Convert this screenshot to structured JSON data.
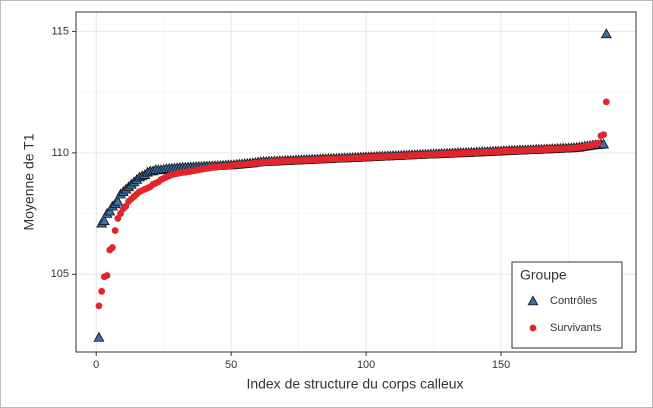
{
  "chart_data": {
    "type": "scatter",
    "x_label": "Index de structure du corps calleux",
    "y_label": "Moyenne de T1",
    "xlim": [
      -7.5,
      200
    ],
    "ylim": [
      101.8,
      115.8
    ],
    "xticks": [
      0,
      50,
      100,
      150
    ],
    "yticks": [
      105,
      110,
      115
    ],
    "x_minor_ticks": [
      25,
      75,
      125,
      175
    ],
    "y_minor_ticks": [
      107.5,
      112.5
    ],
    "grid": true,
    "legend": {
      "title": "Groupe",
      "position": "bottom-right"
    },
    "x": [
      1,
      2,
      3,
      4,
      5,
      6,
      7,
      8,
      9,
      10,
      11,
      12,
      13,
      14,
      15,
      16,
      17,
      18,
      19,
      20,
      21,
      22,
      23,
      24,
      25,
      26,
      27,
      28,
      29,
      30,
      31,
      32,
      33,
      34,
      35,
      36,
      37,
      38,
      39,
      40,
      41,
      42,
      43,
      44,
      45,
      46,
      47,
      48,
      49,
      50,
      51,
      52,
      53,
      54,
      55,
      56,
      57,
      58,
      59,
      60,
      61,
      62,
      63,
      64,
      65,
      66,
      67,
      68,
      69,
      70,
      71,
      72,
      73,
      74,
      75,
      76,
      77,
      78,
      79,
      80,
      81,
      82,
      83,
      84,
      85,
      86,
      87,
      88,
      89,
      90,
      91,
      92,
      93,
      94,
      95,
      96,
      97,
      98,
      99,
      100,
      101,
      102,
      103,
      104,
      105,
      106,
      107,
      108,
      109,
      110,
      111,
      112,
      113,
      114,
      115,
      116,
      117,
      118,
      119,
      120,
      121,
      122,
      123,
      124,
      125,
      126,
      127,
      128,
      129,
      130,
      131,
      132,
      133,
      134,
      135,
      136,
      137,
      138,
      139,
      140,
      141,
      142,
      143,
      144,
      145,
      146,
      147,
      148,
      149,
      150,
      151,
      152,
      153,
      154,
      155,
      156,
      157,
      158,
      159,
      160,
      161,
      162,
      163,
      164,
      165,
      166,
      167,
      168,
      169,
      170,
      171,
      172,
      173,
      174,
      175,
      176,
      177,
      178,
      179,
      180,
      181,
      182,
      183,
      184,
      185,
      186,
      187,
      188,
      189
    ],
    "series": [
      {
        "name": "Contrôles",
        "color": "#3b6fa6",
        "marker": "triangle",
        "values": [
          102.4,
          107.1,
          107.2,
          107.5,
          107.6,
          107.8,
          107.9,
          108.0,
          108.3,
          108.4,
          108.5,
          108.6,
          108.7,
          108.8,
          108.9,
          109.0,
          109.05,
          109.1,
          109.2,
          109.25,
          109.25,
          109.3,
          109.3,
          109.3,
          109.32,
          109.34,
          109.35,
          109.36,
          109.37,
          109.38,
          109.39,
          109.4,
          109.4,
          109.41,
          109.42,
          109.42,
          109.43,
          109.44,
          109.44,
          109.45,
          109.45,
          109.46,
          109.46,
          109.47,
          109.47,
          109.48,
          109.48,
          109.49,
          109.5,
          109.5,
          109.51,
          109.52,
          109.53,
          109.54,
          109.55,
          109.56,
          109.57,
          109.58,
          109.6,
          109.62,
          109.63,
          109.64,
          109.64,
          109.65,
          109.65,
          109.66,
          109.66,
          109.67,
          109.67,
          109.68,
          109.68,
          109.69,
          109.69,
          109.7,
          109.7,
          109.71,
          109.71,
          109.72,
          109.72,
          109.73,
          109.73,
          109.74,
          109.74,
          109.75,
          109.75,
          109.76,
          109.76,
          109.77,
          109.77,
          109.78,
          109.78,
          109.79,
          109.79,
          109.8,
          109.8,
          109.81,
          109.81,
          109.82,
          109.82,
          109.83,
          109.83,
          109.84,
          109.84,
          109.85,
          109.85,
          109.86,
          109.86,
          109.87,
          109.87,
          109.88,
          109.88,
          109.89,
          109.89,
          109.9,
          109.9,
          109.91,
          109.91,
          109.92,
          109.92,
          109.93,
          109.93,
          109.94,
          109.94,
          109.95,
          109.95,
          109.96,
          109.96,
          109.97,
          109.97,
          109.98,
          109.98,
          109.99,
          109.99,
          110.0,
          110.0,
          110.0,
          110.01,
          110.01,
          110.02,
          110.02,
          110.03,
          110.03,
          110.04,
          110.04,
          110.05,
          110.05,
          110.06,
          110.06,
          110.07,
          110.07,
          110.08,
          110.08,
          110.09,
          110.09,
          110.1,
          110.1,
          110.11,
          110.11,
          110.12,
          110.12,
          110.13,
          110.13,
          110.14,
          110.14,
          110.15,
          110.15,
          110.16,
          110.16,
          110.17,
          110.17,
          110.18,
          110.18,
          110.19,
          110.19,
          110.2,
          110.2,
          110.21,
          110.22,
          110.23,
          110.25,
          110.27,
          110.28,
          110.3,
          110.32,
          110.33,
          110.34,
          110.35,
          110.36,
          114.9
        ]
      },
      {
        "name": "Survivants",
        "color": "#e0262b",
        "marker": "circle",
        "values": [
          103.7,
          104.3,
          104.9,
          104.95,
          106.0,
          106.1,
          106.8,
          107.3,
          107.5,
          107.7,
          107.8,
          108.0,
          108.1,
          108.2,
          108.3,
          108.4,
          108.45,
          108.5,
          108.55,
          108.6,
          108.7,
          108.75,
          108.8,
          108.9,
          108.95,
          109.0,
          109.05,
          109.1,
          109.12,
          109.15,
          109.17,
          109.19,
          109.2,
          109.22,
          109.24,
          109.26,
          109.28,
          109.3,
          109.32,
          109.34,
          109.36,
          109.38,
          109.4,
          109.41,
          109.42,
          109.43,
          109.44,
          109.45,
          109.46,
          109.47,
          109.49,
          109.5,
          109.51,
          109.52,
          109.53,
          109.54,
          109.55,
          109.56,
          109.57,
          109.58,
          109.59,
          109.6,
          109.61,
          109.62,
          109.63,
          109.64,
          109.64,
          109.65,
          109.65,
          109.66,
          109.66,
          109.67,
          109.67,
          109.68,
          109.68,
          109.69,
          109.69,
          109.7,
          109.7,
          109.71,
          109.71,
          109.72,
          109.72,
          109.73,
          109.73,
          109.74,
          109.74,
          109.75,
          109.75,
          109.76,
          109.76,
          109.77,
          109.77,
          109.78,
          109.78,
          109.79,
          109.79,
          109.8,
          109.8,
          109.81,
          109.81,
          109.82,
          109.82,
          109.83,
          109.83,
          109.84,
          109.84,
          109.85,
          109.85,
          109.86,
          109.86,
          109.87,
          109.87,
          109.88,
          109.88,
          109.89,
          109.89,
          109.9,
          109.9,
          109.91,
          109.91,
          109.92,
          109.92,
          109.93,
          109.93,
          109.94,
          109.94,
          109.95,
          109.95,
          109.96,
          109.96,
          109.97,
          109.97,
          109.98,
          109.98,
          109.99,
          109.99,
          110.0,
          110.0,
          110.01,
          110.01,
          110.02,
          110.02,
          110.03,
          110.03,
          110.04,
          110.04,
          110.05,
          110.05,
          110.06,
          110.06,
          110.07,
          110.07,
          110.08,
          110.08,
          110.09,
          110.09,
          110.1,
          110.1,
          110.11,
          110.11,
          110.12,
          110.12,
          110.13,
          110.13,
          110.14,
          110.14,
          110.15,
          110.15,
          110.16,
          110.16,
          110.17,
          110.17,
          110.18,
          110.18,
          110.19,
          110.2,
          110.21,
          110.22,
          110.24,
          110.26,
          110.28,
          110.3,
          110.32,
          110.34,
          110.4,
          110.7,
          110.75,
          112.1
        ]
      }
    ]
  }
}
